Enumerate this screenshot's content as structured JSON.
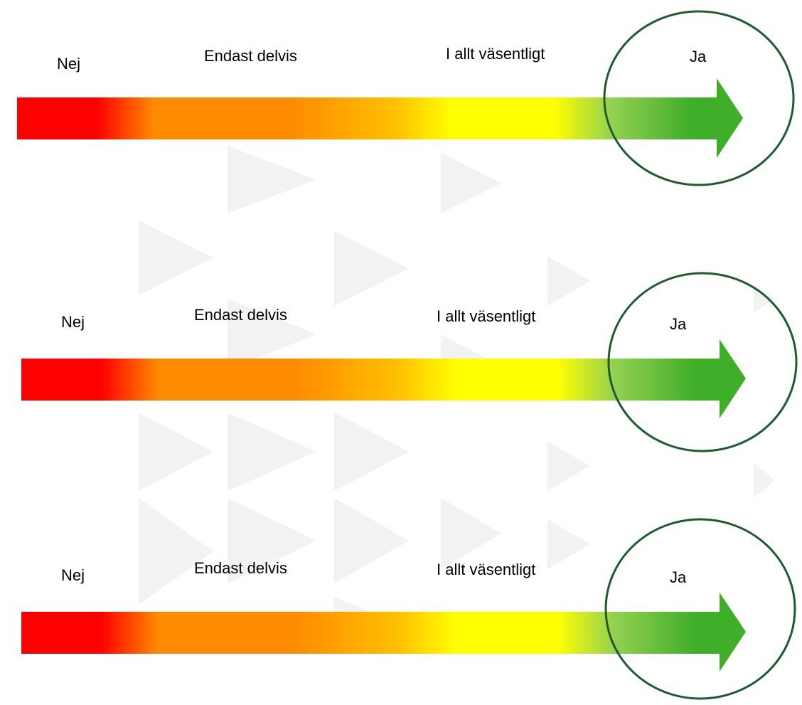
{
  "scales": [
    {
      "labels": [
        "Nej",
        "Endast delvis",
        "I allt väsentligt",
        "Ja"
      ],
      "selected_index": 3
    },
    {
      "labels": [
        "Nej",
        "Endast delvis",
        "I allt väsentligt",
        "Ja"
      ],
      "selected_index": 3
    },
    {
      "labels": [
        "Nej",
        "Endast delvis",
        "I allt väsentligt",
        "Ja"
      ],
      "selected_index": 3
    }
  ],
  "colors": {
    "red": "#ff0000",
    "orange": "#ff8c00",
    "amber": "#ffc000",
    "yellow": "#ffff00",
    "light_green": "#92d050",
    "green": "#3fae29",
    "circle_stroke": "#1e5b2e",
    "watermark": "#f2f2f2"
  }
}
